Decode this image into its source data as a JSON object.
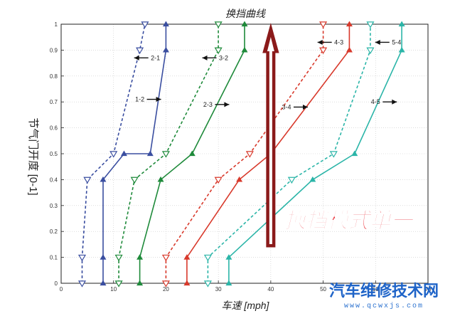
{
  "chart_data": {
    "type": "line",
    "title": "换挡曲线",
    "xlabel": "车速 [mph]",
    "ylabel": "节气门开度 [0-1]",
    "xlim": [
      0,
      70
    ],
    "ylim": [
      0,
      1
    ],
    "xticks": [
      "0",
      "10",
      "20",
      "30",
      "40",
      "50",
      "60",
      "70"
    ],
    "yticks": [
      "0",
      "0.1",
      "0.2",
      "0.3",
      "0.4",
      "0.5",
      "0.6",
      "0.7",
      "0.8",
      "0.9",
      "1"
    ],
    "grid": true,
    "series": [
      {
        "name": "1-2",
        "color": "#3a4ea0",
        "dash": false,
        "marker": "up",
        "points": [
          [
            8,
            0
          ],
          [
            8,
            0.1
          ],
          [
            8,
            0.4
          ],
          [
            12,
            0.5
          ],
          [
            17,
            0.5
          ],
          [
            20,
            0.9
          ],
          [
            20,
            1
          ]
        ]
      },
      {
        "name": "2-1",
        "color": "#3a4ea0",
        "dash": true,
        "marker": "down",
        "points": [
          [
            4,
            0
          ],
          [
            4,
            0.1
          ],
          [
            5,
            0.4
          ],
          [
            10,
            0.5
          ],
          [
            15,
            0.9
          ],
          [
            16,
            1
          ]
        ]
      },
      {
        "name": "2-3",
        "color": "#1e8a3a",
        "dash": false,
        "marker": "up",
        "points": [
          [
            15,
            0
          ],
          [
            15,
            0.1
          ],
          [
            19,
            0.4
          ],
          [
            25,
            0.5
          ],
          [
            35,
            0.9
          ],
          [
            35,
            1
          ]
        ]
      },
      {
        "name": "3-2",
        "color": "#1e8a3a",
        "dash": true,
        "marker": "down",
        "points": [
          [
            11,
            0
          ],
          [
            11,
            0.1
          ],
          [
            14,
            0.4
          ],
          [
            20,
            0.5
          ],
          [
            30,
            0.9
          ],
          [
            30,
            1
          ]
        ]
      },
      {
        "name": "3-4",
        "color": "#d8392b",
        "dash": false,
        "marker": "up",
        "points": [
          [
            24,
            0
          ],
          [
            24,
            0.1
          ],
          [
            34,
            0.4
          ],
          [
            40,
            0.5
          ],
          [
            55,
            0.9
          ],
          [
            55,
            1
          ]
        ]
      },
      {
        "name": "4-3",
        "color": "#d8392b",
        "dash": true,
        "marker": "down",
        "points": [
          [
            20,
            0
          ],
          [
            20,
            0.1
          ],
          [
            30,
            0.4
          ],
          [
            36,
            0.5
          ],
          [
            50,
            0.9
          ],
          [
            50,
            1
          ]
        ]
      },
      {
        "name": "4-5",
        "color": "#2bb5a8",
        "dash": false,
        "marker": "up",
        "points": [
          [
            32,
            0
          ],
          [
            32,
            0.1
          ],
          [
            48,
            0.4
          ],
          [
            56,
            0.5
          ],
          [
            65,
            0.9
          ],
          [
            65,
            1
          ]
        ]
      },
      {
        "name": "5-4",
        "color": "#2bb5a8",
        "dash": true,
        "marker": "down",
        "points": [
          [
            28,
            0
          ],
          [
            28,
            0.1
          ],
          [
            44,
            0.4
          ],
          [
            52,
            0.5
          ],
          [
            59,
            0.9
          ],
          [
            59,
            1
          ]
        ]
      }
    ],
    "annotations": [
      {
        "text": "2-1",
        "x": 18,
        "y": 0.87,
        "arrow": "left"
      },
      {
        "text": "1-2",
        "x": 15,
        "y": 0.71,
        "arrow": "right"
      },
      {
        "text": "3-2",
        "x": 31,
        "y": 0.87,
        "arrow": "left"
      },
      {
        "text": "2-3",
        "x": 28,
        "y": 0.69,
        "arrow": "right"
      },
      {
        "text": "4-3",
        "x": 53,
        "y": 0.93,
        "arrow": "left"
      },
      {
        "text": "3-4",
        "x": 43,
        "y": 0.68,
        "arrow": "right"
      },
      {
        "text": "5-4",
        "x": 64,
        "y": 0.93,
        "arrow": "left"
      },
      {
        "text": "4-5",
        "x": 60,
        "y": 0.7,
        "arrow": "right"
      }
    ],
    "big_arrow": {
      "x": 40,
      "y_start": 0.14,
      "y_end": 1.0,
      "color": "#8b1a1a"
    }
  },
  "callout": {
    "text": "换挡模式单一",
    "color": "#e8202a"
  },
  "watermark": {
    "text": "汽车维修技术网",
    "url": "www.qcwxjs.com",
    "color": "#1f64c8"
  }
}
